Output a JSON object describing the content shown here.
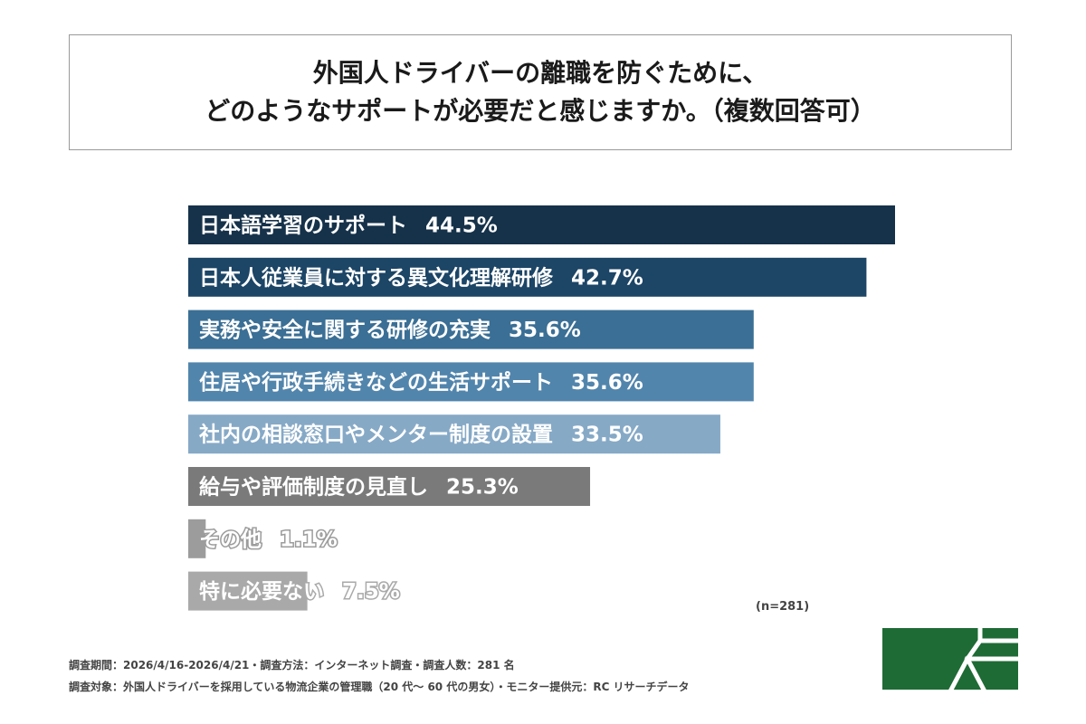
{
  "header": {
    "title_line1": "外国人ドライバーの離職を防ぐために、",
    "title_line2": "どのようなサポートが必要だと感じますか。（複数回答可）"
  },
  "chart_data": {
    "type": "bar",
    "orientation": "horizontal",
    "title": "外国人ドライバーの離職を防ぐために、どのようなサポートが必要だと感じますか。（複数回答可）",
    "categories": [
      "日本語学習のサポート",
      "日本人従業員に対する異文化理解研修",
      "実務や安全に関する研修の充実",
      "住居や行政手続きなどの生活サポート",
      "社内の相談窓口やメンター制度の設置",
      "給与や評価制度の見直し",
      "その他",
      "特に必要ない"
    ],
    "values": [
      44.5,
      42.7,
      35.6,
      35.6,
      33.5,
      25.3,
      1.1,
      7.5
    ],
    "value_labels": [
      "44.5%",
      "42.7%",
      "35.6%",
      "35.6%",
      "33.5%",
      "25.3%",
      "1.1%",
      "7.5%"
    ],
    "bar_colors": [
      "#16324a",
      "#1c4566",
      "#3b6f95",
      "#5285ac",
      "#86a9c6",
      "#7a7a7a",
      "#9c9c9c",
      "#a9a9a9"
    ],
    "xlim": [
      0,
      100
    ],
    "unit": "%",
    "grid": false,
    "legend": "none"
  },
  "sample_label": "(n=281)",
  "footnotes": {
    "line1": "調査期間：2026/4/16-2026/4/21・調査方法：インターネット調査・調査人数：281 名",
    "line2": "調査対象：外国人ドライバーを採用している物流企業の管理職（20 代～ 60 代の男女）・モニター提供元：RC リサーチデータ"
  },
  "logo": {
    "icon": "green-square-logo",
    "color": "#1e6b35"
  }
}
